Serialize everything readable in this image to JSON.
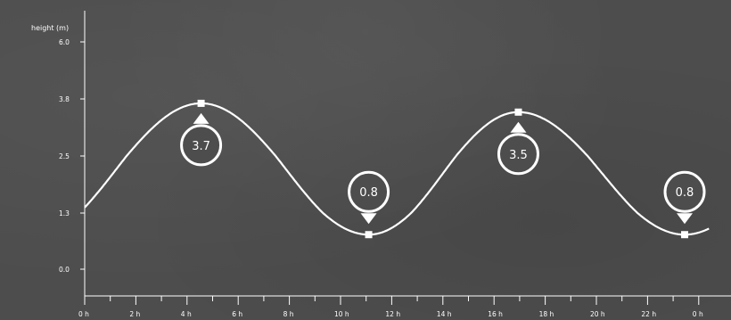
{
  "chart_data": {
    "type": "line",
    "title": "",
    "xlabel": "",
    "ylabel": "height (m)",
    "x_tick_labels": [
      "0 h",
      "2 h",
      "4 h",
      "6 h",
      "8 h",
      "10 h",
      "12 h",
      "14 h",
      "16 h",
      "18 h",
      "20 h",
      "22 h",
      "0 h"
    ],
    "y_tick_labels": [
      "0.0",
      "1.3",
      "2.5",
      "3.8",
      "6.0"
    ],
    "xlim": [
      0,
      24.4
    ],
    "ylim": [
      -0.6,
      6.4
    ],
    "grid": false,
    "series": [
      {
        "extremes": [
          {
            "kind": "high",
            "x": 4.55,
            "y": 3.7,
            "label": "3.7"
          },
          {
            "kind": "low",
            "x": 11.1,
            "y": 0.8,
            "label": "0.8"
          },
          {
            "kind": "high",
            "x": 16.95,
            "y": 3.5,
            "label": "3.5"
          },
          {
            "kind": "low",
            "x": 23.45,
            "y": 0.8,
            "label": "0.8"
          }
        ]
      }
    ],
    "colors": {
      "line": "#ffffff",
      "background": "#4d4d4d"
    }
  }
}
